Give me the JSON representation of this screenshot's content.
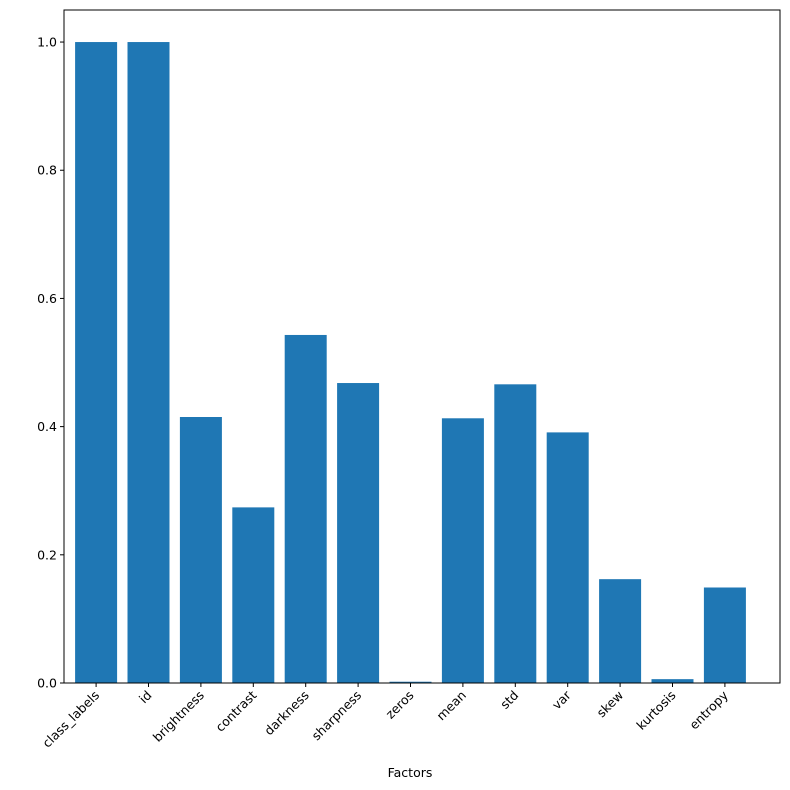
{
  "chart_data": {
    "type": "bar",
    "categories": [
      "class_labels",
      "id",
      "brightness",
      "contrast",
      "darkness",
      "sharpness",
      "zeros",
      "mean",
      "std",
      "var",
      "skew",
      "kurtosis",
      "entropy"
    ],
    "values": [
      1.0,
      1.0,
      0.415,
      0.274,
      0.543,
      0.468,
      0.002,
      0.413,
      0.466,
      0.391,
      0.162,
      0.006,
      0.149
    ],
    "title": "",
    "xlabel": "Factors",
    "ylabel": "",
    "ylim": [
      0,
      1.05
    ],
    "yticks": [
      "0.0",
      "0.2",
      "0.4",
      "0.6",
      "0.8",
      "1.0"
    ],
    "bar_color": "#1f77b4",
    "grid": false,
    "legend": "none"
  }
}
